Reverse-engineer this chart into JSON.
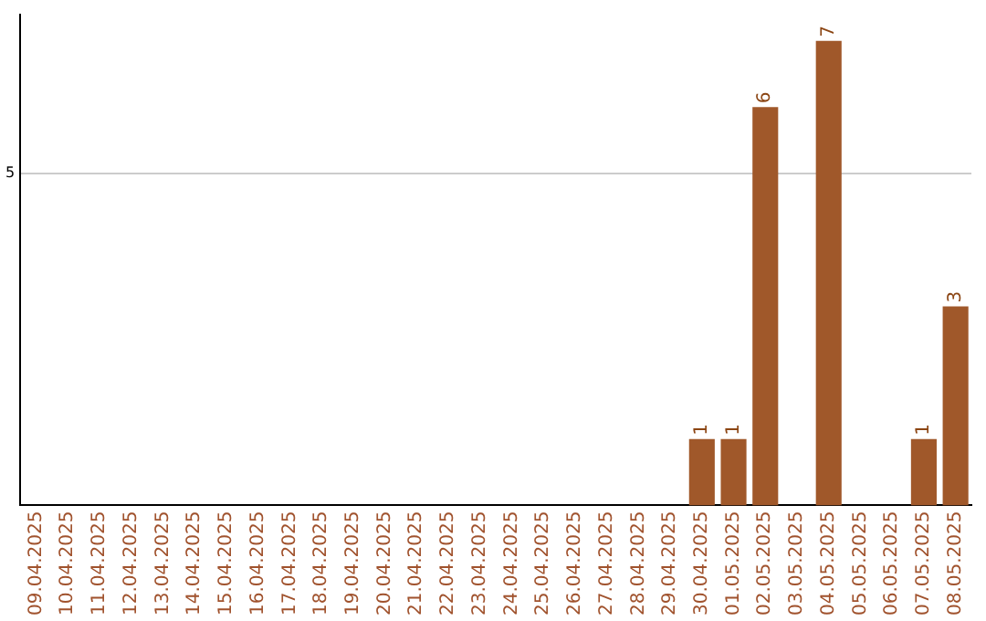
{
  "chart_data": {
    "type": "bar",
    "categories": [
      "09.04.2025",
      "10.04.2025",
      "11.04.2025",
      "12.04.2025",
      "13.04.2025",
      "14.04.2025",
      "15.04.2025",
      "16.04.2025",
      "17.04.2025",
      "18.04.2025",
      "19.04.2025",
      "20.04.2025",
      "21.04.2025",
      "22.04.2025",
      "23.04.2025",
      "24.04.2025",
      "25.04.2025",
      "26.04.2025",
      "27.04.2025",
      "28.04.2025",
      "29.04.2025",
      "30.04.2025",
      "01.05.2025",
      "02.05.2025",
      "03.05.2025",
      "04.05.2025",
      "05.05.2025",
      "06.05.2025",
      "07.05.2025",
      "08.05.2025"
    ],
    "values": [
      null,
      null,
      null,
      null,
      null,
      null,
      null,
      null,
      null,
      null,
      null,
      null,
      null,
      null,
      null,
      null,
      null,
      null,
      null,
      null,
      null,
      1,
      1,
      6,
      null,
      7,
      null,
      null,
      1,
      3
    ],
    "color": "#a0582a",
    "ylim": [
      0,
      7.4
    ],
    "yticks": [
      5
    ],
    "grid": "y",
    "legend": false,
    "data_labels": true
  }
}
